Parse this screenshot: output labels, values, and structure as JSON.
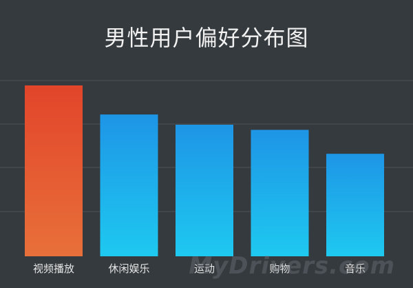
{
  "chart_data": {
    "type": "bar",
    "title": "男性用户偏好分布图",
    "categories": [
      "视频播放",
      "休闲娱乐",
      "运动",
      "购物",
      "音乐"
    ],
    "values": [
      100,
      83,
      77,
      74,
      60
    ],
    "ylim": [
      0,
      100
    ],
    "grid": true,
    "legend": "none",
    "colors": {
      "highlight_top": "#e2452a",
      "highlight_bottom": "#e8703a",
      "bar_top": "#1e95e6",
      "bar_bottom": "#1ec9f0",
      "grid": "#4c5257",
      "background": "#353a3e"
    }
  },
  "watermark": "MyDrivers.com"
}
